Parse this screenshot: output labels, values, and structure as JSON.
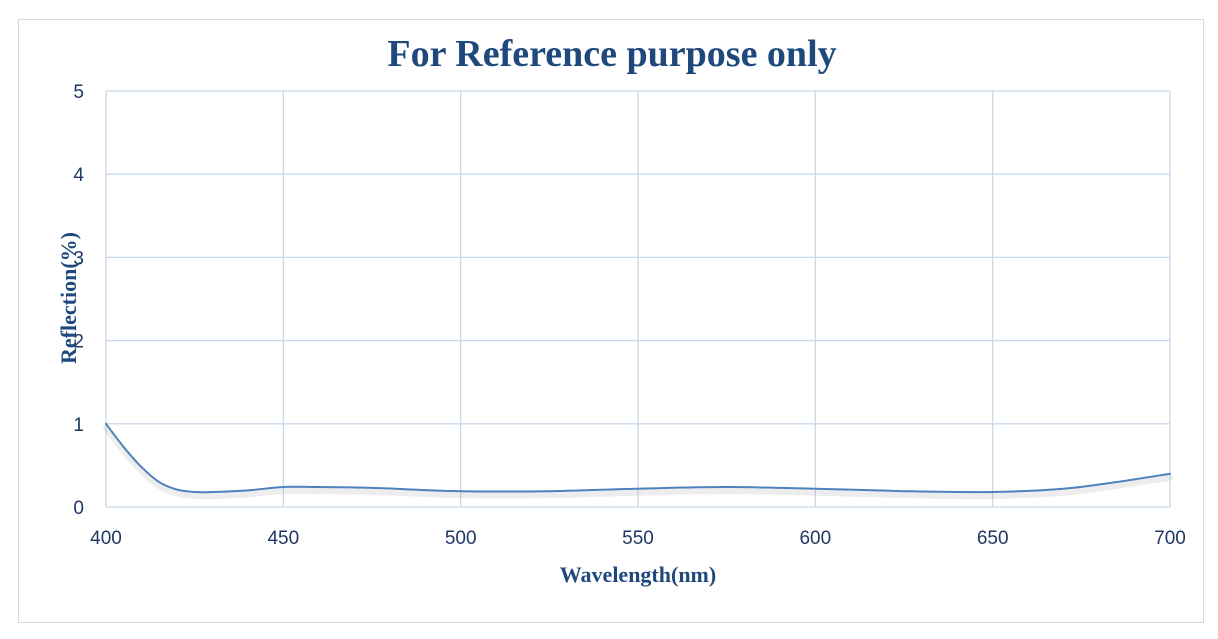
{
  "chart_data": {
    "type": "line",
    "title": "For Reference purpose only",
    "xlabel": "Wavelength(nm)",
    "ylabel": "Reflection(%)",
    "xlim": [
      400,
      700
    ],
    "ylim": [
      0,
      5
    ],
    "xticks": [
      400,
      450,
      500,
      550,
      600,
      650,
      700
    ],
    "yticks": [
      0,
      1,
      2,
      3,
      4,
      5
    ],
    "grid": true,
    "line_color": "#4f81bd",
    "title_color": "#1f497d",
    "series": [
      {
        "x": [
          400,
          405,
          410,
          415,
          420,
          425,
          430,
          440,
          450,
          460,
          475,
          500,
          525,
          550,
          575,
          600,
          625,
          650,
          670,
          685,
          700
        ],
        "y": [
          1.0,
          0.72,
          0.48,
          0.3,
          0.21,
          0.18,
          0.18,
          0.2,
          0.24,
          0.24,
          0.23,
          0.19,
          0.19,
          0.22,
          0.24,
          0.22,
          0.19,
          0.18,
          0.22,
          0.3,
          0.4
        ]
      }
    ]
  }
}
